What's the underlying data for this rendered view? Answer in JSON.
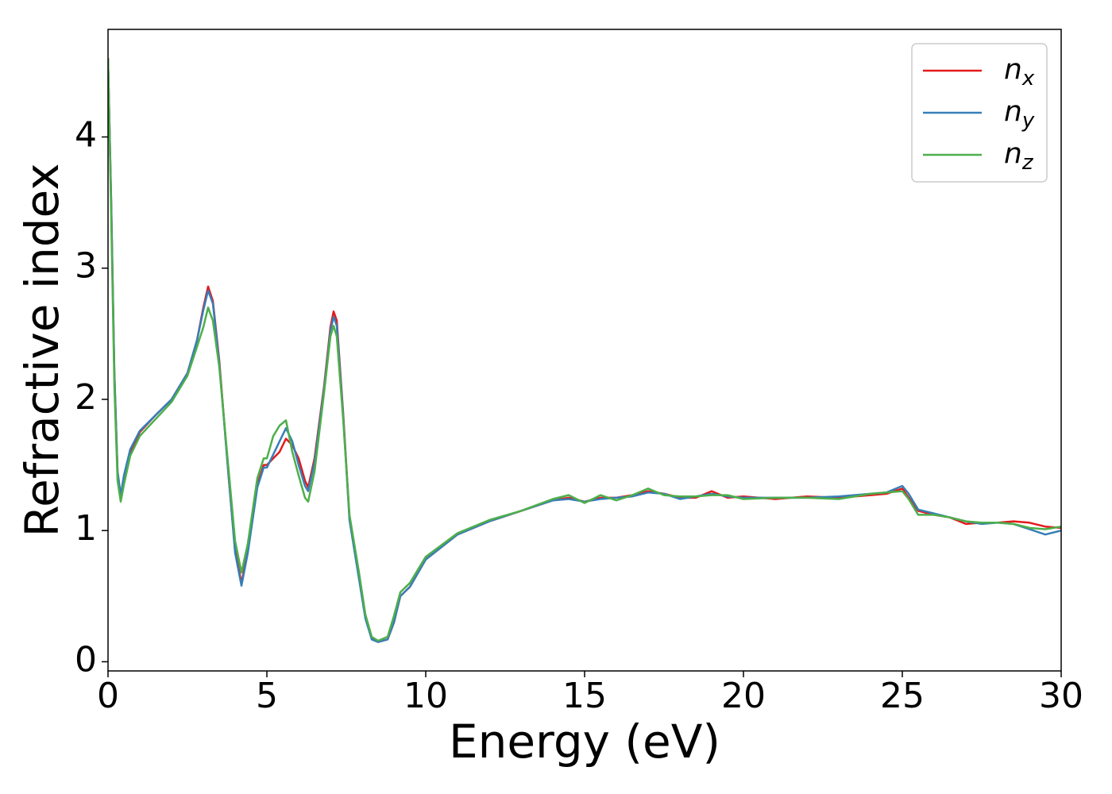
{
  "chart_data": {
    "type": "line",
    "xlabel": "Energy (eV)",
    "ylabel": "Refractive index",
    "x": [
      0,
      0.1,
      0.2,
      0.3,
      0.4,
      0.5,
      0.7,
      1.0,
      1.5,
      2.0,
      2.5,
      2.8,
      3.0,
      3.15,
      3.3,
      3.5,
      3.8,
      4.0,
      4.2,
      4.4,
      4.7,
      4.9,
      5.0,
      5.2,
      5.4,
      5.6,
      5.8,
      6.0,
      6.2,
      6.3,
      6.5,
      6.8,
      7.0,
      7.1,
      7.2,
      7.4,
      7.6,
      7.9,
      8.1,
      8.3,
      8.5,
      8.8,
      9.0,
      9.2,
      9.5,
      10,
      11,
      12,
      13,
      14,
      14.5,
      15,
      15.5,
      16,
      16.5,
      17,
      17.5,
      18,
      18.5,
      19,
      19.5,
      20,
      21,
      22,
      23,
      24,
      24.5,
      25,
      25.2,
      25.5,
      26,
      26.5,
      27,
      27.5,
      28,
      28.5,
      29,
      29.5,
      30
    ],
    "series": [
      {
        "name": "nx",
        "color": "#e41a1c",
        "values": [
          4.6,
          3.5,
          2.2,
          1.45,
          1.25,
          1.4,
          1.6,
          1.75,
          1.88,
          2.0,
          2.2,
          2.45,
          2.7,
          2.86,
          2.75,
          2.3,
          1.4,
          0.85,
          0.6,
          0.85,
          1.35,
          1.5,
          1.5,
          1.55,
          1.6,
          1.7,
          1.65,
          1.55,
          1.38,
          1.33,
          1.55,
          2.1,
          2.55,
          2.67,
          2.6,
          1.9,
          1.1,
          0.65,
          0.35,
          0.18,
          0.15,
          0.17,
          0.3,
          0.5,
          0.57,
          0.78,
          0.97,
          1.07,
          1.15,
          1.23,
          1.25,
          1.22,
          1.25,
          1.25,
          1.27,
          1.3,
          1.28,
          1.25,
          1.25,
          1.3,
          1.25,
          1.26,
          1.24,
          1.26,
          1.25,
          1.27,
          1.28,
          1.32,
          1.25,
          1.15,
          1.12,
          1.1,
          1.05,
          1.06,
          1.06,
          1.07,
          1.06,
          1.03,
          1.02
        ]
      },
      {
        "name": "ny",
        "color": "#377eb8",
        "values": [
          4.6,
          3.5,
          2.2,
          1.45,
          1.27,
          1.42,
          1.62,
          1.76,
          1.88,
          2.0,
          2.2,
          2.45,
          2.68,
          2.83,
          2.73,
          2.28,
          1.4,
          0.83,
          0.58,
          0.83,
          1.33,
          1.48,
          1.48,
          1.58,
          1.68,
          1.78,
          1.68,
          1.5,
          1.34,
          1.3,
          1.52,
          2.08,
          2.52,
          2.63,
          2.56,
          1.88,
          1.08,
          0.63,
          0.33,
          0.17,
          0.15,
          0.17,
          0.3,
          0.5,
          0.57,
          0.78,
          0.97,
          1.07,
          1.15,
          1.23,
          1.24,
          1.22,
          1.24,
          1.25,
          1.26,
          1.29,
          1.28,
          1.24,
          1.26,
          1.28,
          1.26,
          1.25,
          1.25,
          1.25,
          1.26,
          1.28,
          1.29,
          1.34,
          1.28,
          1.16,
          1.13,
          1.1,
          1.07,
          1.05,
          1.06,
          1.05,
          1.01,
          0.97,
          1.0
        ]
      },
      {
        "name": "nz",
        "color": "#4daf4a",
        "values": [
          4.6,
          3.4,
          2.1,
          1.38,
          1.22,
          1.35,
          1.57,
          1.72,
          1.85,
          1.98,
          2.18,
          2.4,
          2.55,
          2.7,
          2.6,
          2.25,
          1.45,
          0.92,
          0.68,
          0.9,
          1.4,
          1.55,
          1.55,
          1.72,
          1.8,
          1.84,
          1.6,
          1.42,
          1.25,
          1.22,
          1.45,
          2.05,
          2.48,
          2.56,
          2.48,
          1.85,
          1.12,
          0.68,
          0.36,
          0.19,
          0.16,
          0.19,
          0.35,
          0.53,
          0.6,
          0.8,
          0.98,
          1.08,
          1.15,
          1.24,
          1.27,
          1.21,
          1.27,
          1.23,
          1.27,
          1.32,
          1.27,
          1.26,
          1.26,
          1.27,
          1.27,
          1.24,
          1.25,
          1.25,
          1.24,
          1.28,
          1.29,
          1.3,
          1.24,
          1.12,
          1.12,
          1.1,
          1.07,
          1.06,
          1.06,
          1.05,
          1.02,
          1.01,
          1.03
        ]
      }
    ],
    "xlim": [
      0,
      30
    ],
    "xticks": [
      0,
      5,
      10,
      15,
      20,
      25,
      30
    ],
    "ylim": [
      -0.07,
      4.82
    ],
    "yticks": [
      0,
      1,
      2,
      3,
      4
    ],
    "legend": "upper right"
  }
}
